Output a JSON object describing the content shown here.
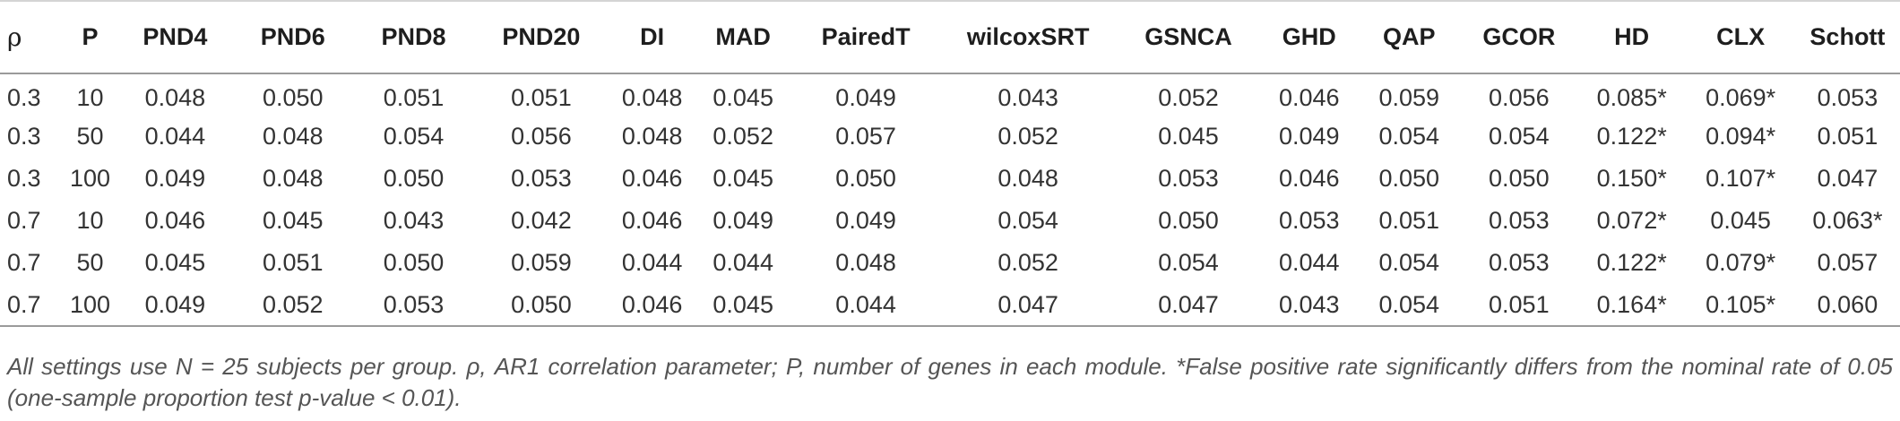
{
  "table": {
    "headers": [
      "ρ",
      "P",
      "PND4",
      "PND6",
      "PND8",
      "PND20",
      "DI",
      "MAD",
      "PairedT",
      "wilcoxSRT",
      "GSNCA",
      "GHD",
      "QAP",
      "GCOR",
      "HD",
      "CLX",
      "Schott"
    ],
    "rows": [
      [
        "0.3",
        "10",
        "0.048",
        "0.050",
        "0.051",
        "0.051",
        "0.048",
        "0.045",
        "0.049",
        "0.043",
        "0.052",
        "0.046",
        "0.059",
        "0.056",
        "0.085*",
        "0.069*",
        "0.053"
      ],
      [
        "0.3",
        "50",
        "0.044",
        "0.048",
        "0.054",
        "0.056",
        "0.048",
        "0.052",
        "0.057",
        "0.052",
        "0.045",
        "0.049",
        "0.054",
        "0.054",
        "0.122*",
        "0.094*",
        "0.051"
      ],
      [
        "0.3",
        "100",
        "0.049",
        "0.048",
        "0.050",
        "0.053",
        "0.046",
        "0.045",
        "0.050",
        "0.048",
        "0.053",
        "0.046",
        "0.050",
        "0.050",
        "0.150*",
        "0.107*",
        "0.047"
      ],
      [
        "0.7",
        "10",
        "0.046",
        "0.045",
        "0.043",
        "0.042",
        "0.046",
        "0.049",
        "0.049",
        "0.054",
        "0.050",
        "0.053",
        "0.051",
        "0.053",
        "0.072*",
        "0.045",
        "0.063*"
      ],
      [
        "0.7",
        "50",
        "0.045",
        "0.051",
        "0.050",
        "0.059",
        "0.044",
        "0.044",
        "0.048",
        "0.052",
        "0.054",
        "0.044",
        "0.054",
        "0.053",
        "0.122*",
        "0.079*",
        "0.057"
      ],
      [
        "0.7",
        "100",
        "0.049",
        "0.052",
        "0.053",
        "0.050",
        "0.046",
        "0.045",
        "0.044",
        "0.047",
        "0.047",
        "0.043",
        "0.054",
        "0.051",
        "0.164*",
        "0.105*",
        "0.060"
      ]
    ]
  },
  "footnote": {
    "line1": "All settings use N = 25 subjects per group. ρ, AR1 correlation parameter; P, number of genes in each module. *False positive rate significantly differs from the nominal",
    "line2": "rate of 0.05 (one-sample proportion test p-value < 0.01)."
  }
}
